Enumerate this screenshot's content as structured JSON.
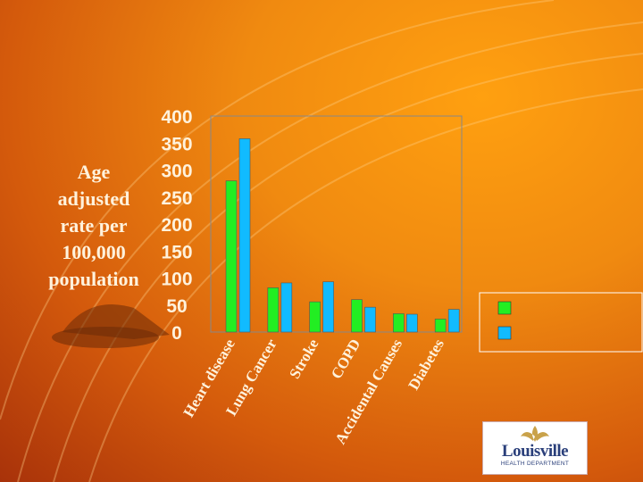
{
  "chart_data": {
    "type": "bar",
    "ylabel": "Age adjusted rate per 100,000 population",
    "categories": [
      "Heart disease",
      "Lung Cancer",
      "Stroke",
      "COPD",
      "Accidental Causes",
      "Diabetes"
    ],
    "series": [
      {
        "values": [
          280,
          82,
          56,
          60,
          34,
          24
        ],
        "color": "#22ee22"
      },
      {
        "values": [
          358,
          91,
          93,
          46,
          33,
          42
        ],
        "color": "#11bbff"
      }
    ],
    "yticks": [
      "0",
      "50",
      "100",
      "150",
      "200",
      "250",
      "300",
      "350",
      "400"
    ],
    "ylim": [
      0,
      400
    ],
    "grid": false,
    "legend": "right"
  },
  "logo": {
    "name": "Louisville",
    "subtitle": "HEALTH DEPARTMENT"
  }
}
